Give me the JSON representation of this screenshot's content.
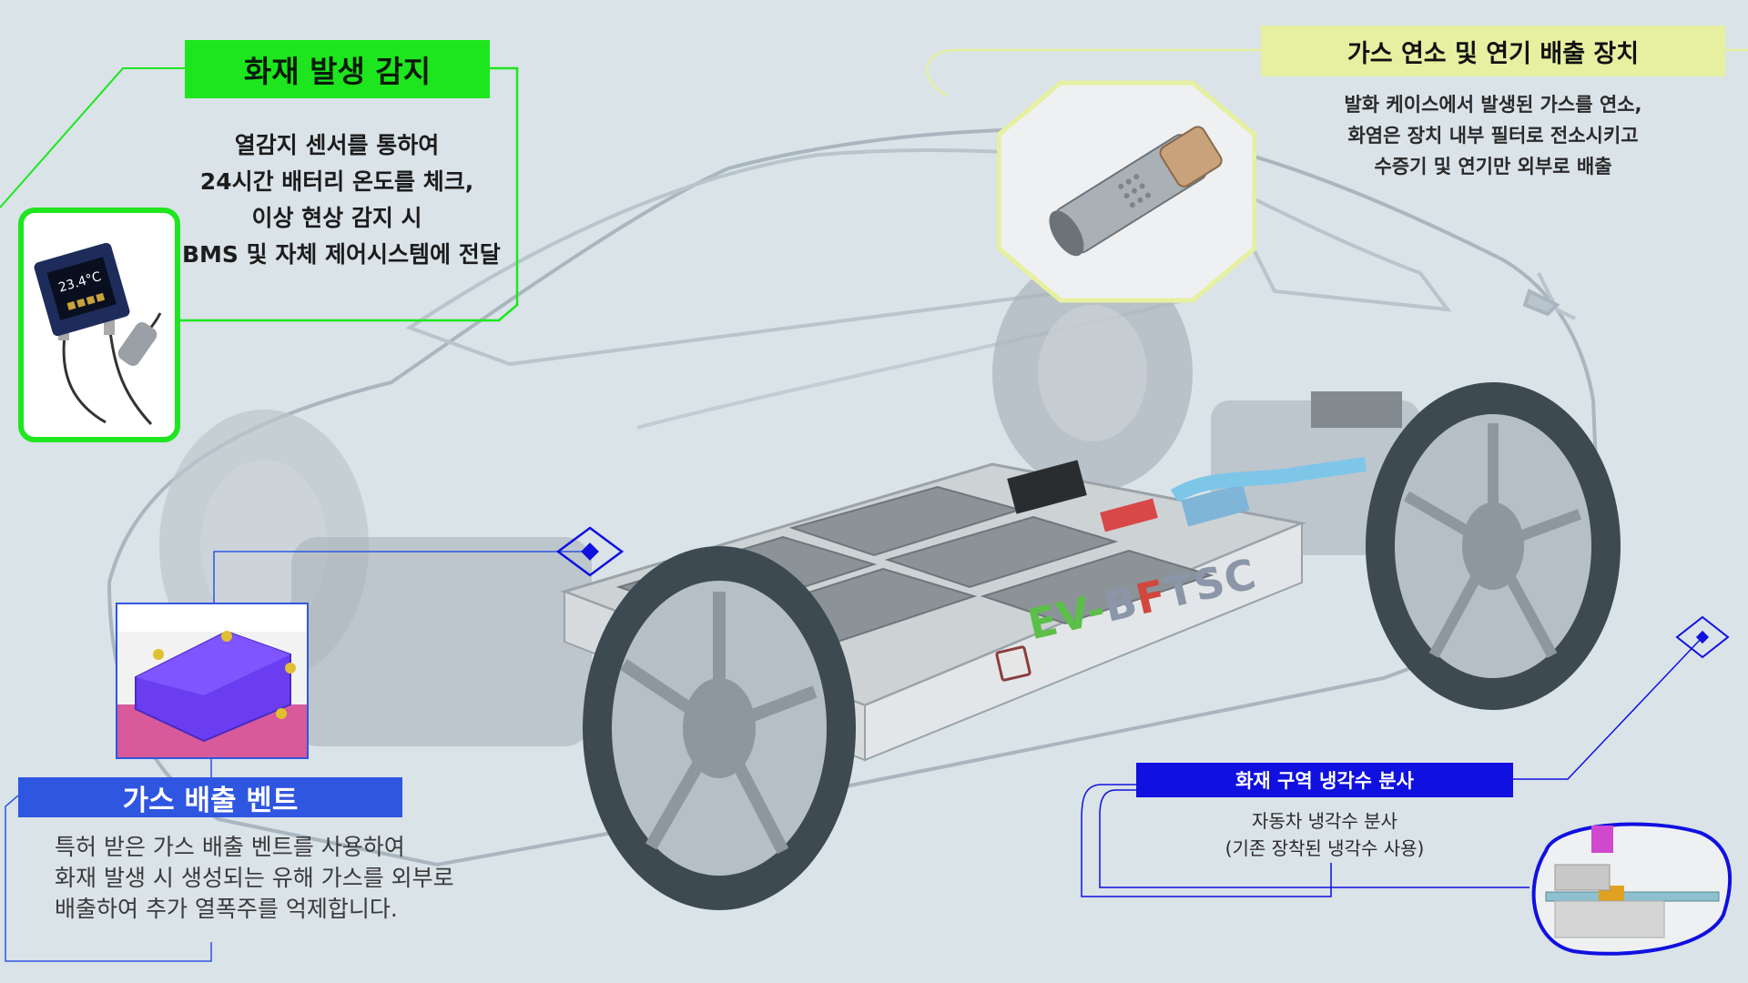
{
  "fire_detection": {
    "title": "화재 발생 감지",
    "lines": [
      "열감지 센서를 통하여",
      "24시간 배터리 온도를 체크,",
      "이상 현상 감지 시",
      "BMS 및 자체 제어시스템에 전달"
    ],
    "sensor_reading": "23.4°C",
    "accent_color": "#1ee61e"
  },
  "gas_combustion": {
    "title": "가스 연소 및 연기 배출 장치",
    "lines": [
      "발화 케이스에서 발생된 가스를 연소,",
      "화염은 장치 내부 필터로 전소시키고",
      "수증기 및 연기만 외부로 배출"
    ],
    "accent_color": "#e6f0a0"
  },
  "gas_vent": {
    "title": "가스 배출 벤트",
    "lines": [
      "특허 받은 가스 배출 벤트를 사용하여",
      "화재 발생 시 생성되는 유해 가스를 외부로",
      "배출하여 추가 열폭주를 억제합니다."
    ],
    "accent_color": "#2f56e0"
  },
  "coolant_spray": {
    "title": "화재 구역 냉각수 분사",
    "lines": [
      "자동차 냉각수 분사",
      "(기존 장착된 냉각수 사용)"
    ],
    "accent_color": "#1010e0"
  },
  "battery_pack": {
    "logo": {
      "part1": "EV-",
      "part2": "B",
      "part3": "F",
      "part4": "TSC"
    }
  },
  "icons": [
    "temperature-sensor-icon",
    "nozzle-icon",
    "vent-icon",
    "coolant-pipe-icon",
    "diamond-marker-icon"
  ]
}
